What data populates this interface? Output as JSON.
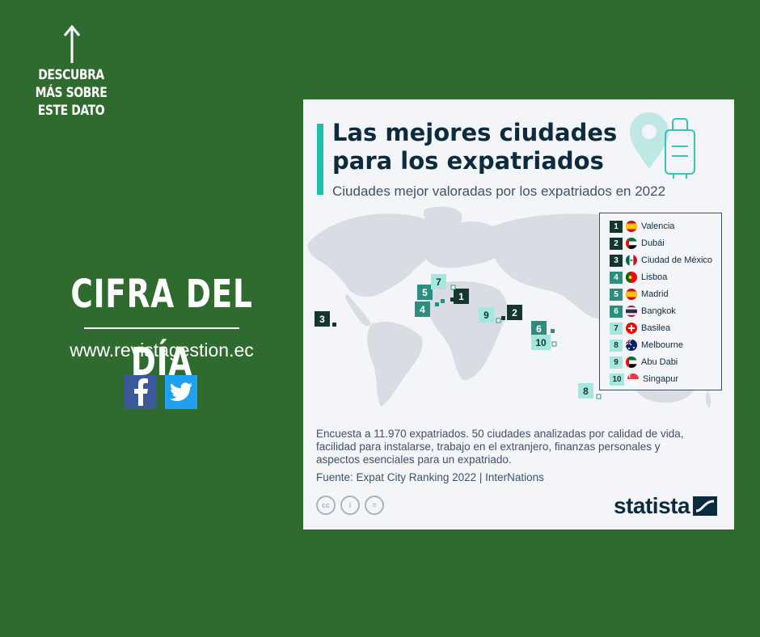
{
  "promo": {
    "text": "DESCUBRA MÁS SOBRE ESTE DATO"
  },
  "headline": "CIFRA DEL DÍA",
  "website": "www.revistagestion.ec",
  "social": {
    "facebook_glyph": "f"
  },
  "chart": {
    "title": "Las mejores ciudades para los expatriados",
    "subtitle": "Ciudades mejor valoradas por los expatriados en 2022",
    "ranking": [
      {
        "rank": "1",
        "city": "Valencia",
        "flag": "spain-flag-icon"
      },
      {
        "rank": "2",
        "city": "Dubái",
        "flag": "uae-flag-icon"
      },
      {
        "rank": "3",
        "city": "Ciudad de México",
        "flag": "mexico-flag-icon"
      },
      {
        "rank": "4",
        "city": "Lisboa",
        "flag": "portugal-flag-icon"
      },
      {
        "rank": "5",
        "city": "Madrid",
        "flag": "spain-flag-icon"
      },
      {
        "rank": "6",
        "city": "Bangkok",
        "flag": "thailand-flag-icon"
      },
      {
        "rank": "7",
        "city": "Basilea",
        "flag": "switzerland-flag-icon"
      },
      {
        "rank": "8",
        "city": "Melbourne",
        "flag": "australia-flag-icon"
      },
      {
        "rank": "9",
        "city": "Abu Dabi",
        "flag": "uae-flag-icon"
      },
      {
        "rank": "10",
        "city": "Singapur",
        "flag": "singapore-flag-icon"
      }
    ],
    "note": "Encuesta a 11.970 expatriados. 50 ciudades analizadas por calidad de vida, facilidad para instalarse, trabajo en el extranjero, finanzas personales y aspectos esenciales para un expatriado.",
    "source": "Fuente: Expat City Ranking 2022 | InterNations",
    "license_icons": [
      "cc",
      "i",
      "="
    ],
    "brand": "statista"
  },
  "colors": {
    "background": "#2f6b2f",
    "accent": "#1dbfae",
    "dark_marker": "#12382d",
    "mid_marker": "#2c8f7e",
    "light_marker": "#a5e7df"
  }
}
